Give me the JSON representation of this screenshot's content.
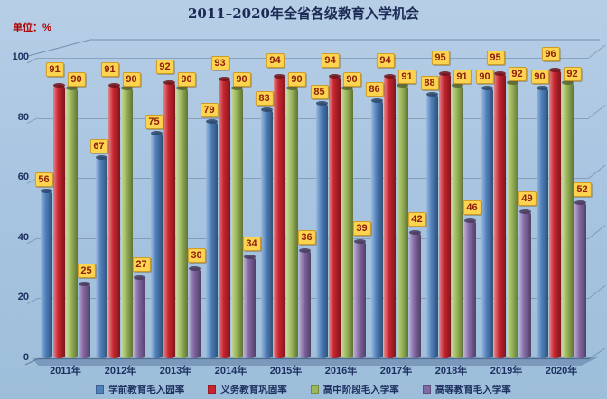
{
  "title": "2011–2020年全省各级教育入学机会",
  "unit_label": "单位：%",
  "colors": {
    "background": "#a7c4e0",
    "title_text": "#1c2b55",
    "unit_text": "#b00000",
    "axis_text": "#1c2f5e",
    "value_label_bg": "#fdd44f",
    "value_label_text": "#8d1d0e",
    "series": [
      "#4f81bd",
      "#c9252e",
      "#9bb859",
      "#8268a4"
    ]
  },
  "chart_data": {
    "type": "bar",
    "title": "2011–2020年全省各级教育入学机会",
    "ylabel": "单位：%",
    "ylim": [
      0,
      100
    ],
    "yticks": [
      0,
      20,
      40,
      60,
      80,
      100
    ],
    "grid": true,
    "legend_position": "bottom",
    "categories": [
      "2011年",
      "2012年",
      "2013年",
      "2014年",
      "2015年",
      "2016年",
      "2017年",
      "2018年",
      "2019年",
      "2020年"
    ],
    "series": [
      {
        "name": "学前教育毛入园率",
        "color": "#4f81bd",
        "values": [
          56,
          67,
          75,
          79,
          83,
          85,
          86,
          88,
          90,
          90
        ]
      },
      {
        "name": "义务教育巩固率",
        "color": "#c9252e",
        "values": [
          91,
          91,
          92,
          93,
          94,
          94,
          94,
          95,
          95,
          96
        ]
      },
      {
        "name": "高中阶段毛入学率",
        "color": "#9bb859",
        "values": [
          90,
          90,
          90,
          90,
          90,
          90,
          91,
          91,
          92,
          92
        ]
      },
      {
        "name": "高等教育毛入学率",
        "color": "#8268a4",
        "values": [
          25,
          27,
          30,
          34,
          36,
          39,
          42,
          46,
          49,
          52
        ]
      }
    ]
  }
}
